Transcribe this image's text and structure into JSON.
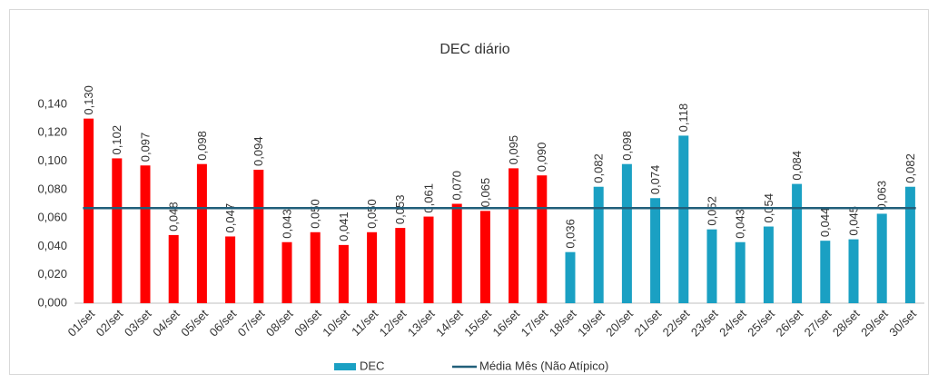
{
  "chart_data": {
    "type": "bar",
    "title": "DEC diário",
    "categories": [
      "01/set",
      "02/set",
      "03/set",
      "04/set",
      "05/set",
      "06/set",
      "07/set",
      "08/set",
      "09/set",
      "10/set",
      "11/set",
      "12/set",
      "13/set",
      "14/set",
      "15/set",
      "16/set",
      "17/set",
      "18/set",
      "19/set",
      "20/set",
      "21/set",
      "22/set",
      "23/set",
      "24/set",
      "25/set",
      "26/set",
      "27/set",
      "28/set",
      "29/set",
      "30/set"
    ],
    "series": [
      {
        "name": "DEC",
        "color": "#1aa0c3",
        "values": [
          0.13,
          0.102,
          0.097,
          0.048,
          0.098,
          0.047,
          0.094,
          0.043,
          0.05,
          0.041,
          0.05,
          0.053,
          0.061,
          0.07,
          0.065,
          0.095,
          0.09,
          0.036,
          0.082,
          0.098,
          0.074,
          0.118,
          0.052,
          0.043,
          0.054,
          0.084,
          0.044,
          0.045,
          0.063,
          0.082
        ],
        "value_labels": [
          "0,130",
          "0,102",
          "0,097",
          "0,048",
          "0,098",
          "0,047",
          "0,094",
          "0,043",
          "0,050",
          "0,041",
          "0,050",
          "0,053",
          "0,061",
          "0,070",
          "0,065",
          "0,095",
          "0,090",
          "0,036",
          "0,082",
          "0,098",
          "0,074",
          "0,118",
          "0,052",
          "0,043",
          "0,054",
          "0,084",
          "0,044",
          "0,045",
          "0,063",
          "0,082"
        ],
        "colors": [
          "#ff0000",
          "#ff0000",
          "#ff0000",
          "#ff0000",
          "#ff0000",
          "#ff0000",
          "#ff0000",
          "#ff0000",
          "#ff0000",
          "#ff0000",
          "#ff0000",
          "#ff0000",
          "#ff0000",
          "#ff0000",
          "#ff0000",
          "#ff0000",
          "#ff0000",
          "#1aa0c3",
          "#1aa0c3",
          "#1aa0c3",
          "#1aa0c3",
          "#1aa0c3",
          "#1aa0c3",
          "#1aa0c3",
          "#1aa0c3",
          "#1aa0c3",
          "#1aa0c3",
          "#1aa0c3",
          "#1aa0c3",
          "#1aa0c3"
        ]
      }
    ],
    "reference_line": {
      "name": "Média Mês (Não Atípico)",
      "color": "#215f7a",
      "value": 0.067
    },
    "ylim": [
      0,
      0.14
    ],
    "yticks": [
      {
        "value": 0,
        "label": "0,000"
      },
      {
        "value": 0.02,
        "label": "0,020"
      },
      {
        "value": 0.04,
        "label": "0,040"
      },
      {
        "value": 0.06,
        "label": "0,060"
      },
      {
        "value": 0.08,
        "label": "0,080"
      },
      {
        "value": 0.1,
        "label": "0,100"
      },
      {
        "value": 0.12,
        "label": "0,120"
      },
      {
        "value": 0.14,
        "label": "0,140"
      }
    ],
    "legend": "bottom"
  }
}
